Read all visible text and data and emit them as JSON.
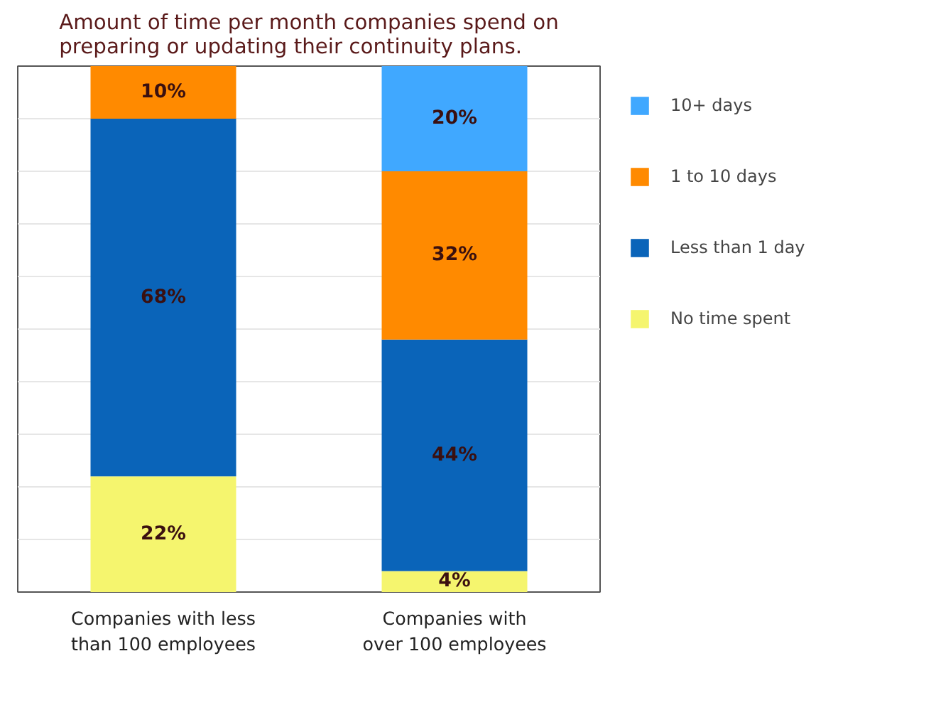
{
  "chart_data": {
    "type": "bar",
    "title": "Amount of time per month companies spend on preparing or updating their continuity plans.",
    "categories": [
      "Companies with less than 100 employees",
      "Companies with over 100 employees"
    ],
    "stacked": true,
    "ylim": [
      0,
      100
    ],
    "yticks": [
      {
        "value": 0,
        "label": null
      },
      {
        "value": 10,
        "label": null
      },
      {
        "value": 20,
        "label": null
      },
      {
        "value": 30,
        "label": null
      },
      {
        "value": 40,
        "label": null
      },
      {
        "value": 50,
        "label": null
      },
      {
        "value": 60,
        "label": null
      },
      {
        "value": 70,
        "label": null
      },
      {
        "value": 80,
        "label": null
      },
      {
        "value": 90,
        "label": null
      },
      {
        "value": 100,
        "label": null
      }
    ],
    "grid": "y",
    "legend": "right",
    "tick_labels": "x",
    "series": [
      {
        "name": "No time spent",
        "color": "#f5f56e",
        "values": [
          22,
          4
        ],
        "value_labels": [
          "22%",
          "4%"
        ]
      },
      {
        "name": "Less than 1 day",
        "color": "#0a64b9",
        "values": [
          68,
          44
        ],
        "value_labels": [
          "68%",
          "44%"
        ]
      },
      {
        "name": "1 to 10 days",
        "color": "#ff8a00",
        "values": [
          10,
          32
        ],
        "value_labels": [
          "10%",
          "32%"
        ]
      },
      {
        "name": "10+ days",
        "color": "#40a8ff",
        "values": [
          0,
          20
        ],
        "value_labels": [
          null,
          "20%"
        ]
      }
    ]
  }
}
